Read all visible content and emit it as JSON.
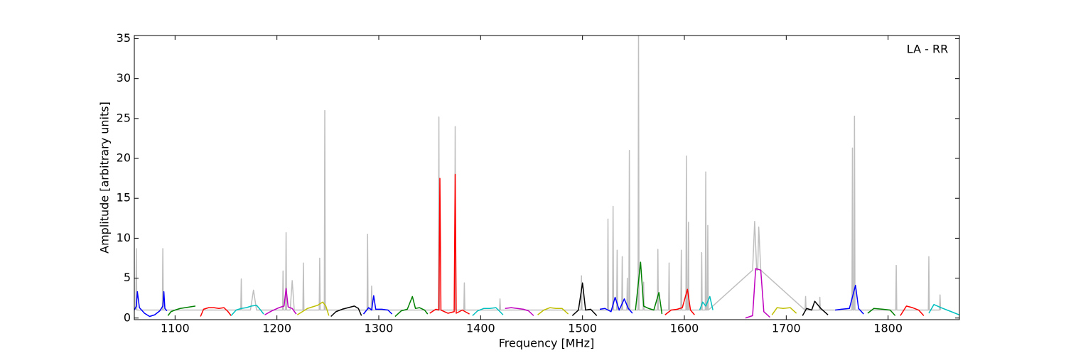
{
  "chart_data": {
    "type": "line",
    "xlabel": "Frequency [MHz]",
    "ylabel": "Amplitude [arbitrary units]",
    "annotation": "LA - RR",
    "xlim": [
      1060,
      1870
    ],
    "ylim": [
      -0.2,
      35.4
    ],
    "xticks": [
      1100,
      1200,
      1300,
      1400,
      1500,
      1600,
      1700,
      1800
    ],
    "yticks": [
      0,
      5,
      10,
      15,
      20,
      25,
      30,
      35
    ],
    "series": [
      {
        "color": "#bfbfbf",
        "x": [
          1061.5,
          1062,
          1062.5,
          1087.5,
          1088,
          1088.5,
          1164.5,
          1165,
          1165.5,
          1174,
          1177,
          1180,
          1205.5,
          1206,
          1206.5,
          1208.5,
          1209,
          1209.5,
          1213,
          1215,
          1217,
          1225.5,
          1226,
          1226.5,
          1241.5,
          1242,
          1242.5,
          1246.5,
          1247,
          1247.5,
          1288.5,
          1289,
          1289.5,
          1292.5,
          1293,
          1293.5,
          1358.5,
          1359,
          1359.5,
          1374.5,
          1375,
          1375.5,
          1383.5,
          1384,
          1384.5,
          1418.5,
          1419,
          1419.5,
          1498.5,
          1499,
          1499.5,
          1524.5,
          1525,
          1525.5,
          1529.5,
          1530,
          1530.5,
          1533.5,
          1534,
          1534.5,
          1538.5,
          1539,
          1539.5,
          1543.5,
          1544,
          1544.5,
          1545.5,
          1546,
          1546.5,
          1554.5,
          1555,
          1555.5,
          1559.5,
          1560,
          1560.5,
          1573.5,
          1574,
          1574.5,
          1584.5,
          1585,
          1585.5,
          1596.5,
          1597,
          1597.5,
          1601.5,
          1602,
          1602.5,
          1603.5,
          1604,
          1604.5,
          1616.5,
          1617,
          1617.5,
          1620.5,
          1621,
          1621.5,
          1622.5,
          1623,
          1623.5,
          1667,
          1669,
          1671,
          1672,
          1673,
          1675,
          1718.5,
          1719,
          1719.5,
          1732.5,
          1733,
          1733.5,
          1764.5,
          1765,
          1765.5,
          1766.5,
          1767,
          1767.5,
          1807.5,
          1808,
          1808.5,
          1839.5,
          1840,
          1840.5,
          1850.5,
          1851,
          1851.5
        ],
        "values": [
          1,
          8.7,
          1,
          1,
          8.7,
          1,
          1,
          4.9,
          1,
          1,
          3.5,
          1,
          1,
          5.9,
          1,
          1,
          10.7,
          1,
          1,
          4.7,
          1,
          1,
          6.9,
          1,
          1,
          7.5,
          1,
          1,
          26,
          1,
          1,
          10.5,
          1,
          1,
          4,
          1,
          1,
          25.2,
          1,
          1,
          24,
          1,
          1,
          4.4,
          1,
          1,
          2.4,
          1,
          1,
          5.3,
          1,
          1,
          12.4,
          1,
          1,
          14,
          1,
          1,
          8.5,
          1,
          1,
          7.7,
          1,
          1,
          5,
          1,
          1,
          21,
          1,
          1,
          35.4,
          1,
          1,
          4.5,
          1,
          1,
          8.6,
          1,
          1,
          6.9,
          1,
          1,
          8.5,
          1,
          1,
          20.3,
          1,
          1,
          12,
          1,
          1,
          8.2,
          1,
          1,
          18.3,
          1,
          1,
          11.6,
          1,
          6,
          12.1,
          6,
          6,
          11.4,
          6,
          1,
          2.7,
          1,
          1,
          2.6,
          1,
          1,
          21.3,
          1,
          1,
          25.3,
          1,
          1,
          6.6,
          1,
          1,
          7.7,
          1,
          1,
          2.9,
          1
        ]
      },
      {
        "color": "#0000ff",
        "x": [
          1060,
          1062,
          1063,
          1065,
          1070,
          1075,
          1080,
          1085,
          1088,
          1089,
          1090,
          1092
        ],
        "values": [
          1.0,
          1.5,
          3.3,
          1.3,
          0.6,
          0.2,
          0.4,
          0.9,
          1.5,
          3.3,
          1.2,
          0.9
        ]
      },
      {
        "color": "#008000",
        "x": [
          1093,
          1096,
          1100,
          1105,
          1110,
          1115,
          1120
        ],
        "values": [
          0.3,
          0.8,
          1.0,
          1.2,
          1.3,
          1.4,
          1.5
        ]
      },
      {
        "color": "#ff0000",
        "x": [
          1125,
          1128,
          1133,
          1138,
          1143,
          1148,
          1152,
          1155
        ],
        "values": [
          0.2,
          1.1,
          1.3,
          1.3,
          1.2,
          1.3,
          0.8,
          0.3
        ]
      },
      {
        "color": "#00bfbf",
        "x": [
          1155,
          1160,
          1165,
          1170,
          1175,
          1180,
          1184,
          1187
        ],
        "values": [
          0.3,
          1.0,
          1.2,
          1.3,
          1.5,
          1.6,
          1.0,
          0.5
        ]
      },
      {
        "color": "#bf00bf",
        "x": [
          1188,
          1195,
          1202,
          1207,
          1209,
          1211,
          1215,
          1219
        ],
        "values": [
          0.4,
          0.9,
          1.3,
          1.5,
          3.7,
          1.4,
          1.2,
          0.5
        ]
      },
      {
        "color": "#bfbf00",
        "x": [
          1220,
          1225,
          1230,
          1235,
          1240,
          1245,
          1248,
          1251
        ],
        "values": [
          0.4,
          0.8,
          1.2,
          1.4,
          1.6,
          2.0,
          1.5,
          0.3
        ]
      },
      {
        "color": "#000000",
        "x": [
          1253,
          1258,
          1264,
          1270,
          1276,
          1280,
          1283
        ],
        "values": [
          0.2,
          0.8,
          1.1,
          1.3,
          1.5,
          1.2,
          0.3
        ]
      },
      {
        "color": "#0000ff",
        "x": [
          1285,
          1290,
          1293,
          1295,
          1297,
          1303,
          1309,
          1313
        ],
        "values": [
          0.5,
          1.3,
          1.0,
          2.8,
          1.1,
          1.1,
          1.0,
          0.5
        ]
      },
      {
        "color": "#008000",
        "x": [
          1316,
          1322,
          1328,
          1333,
          1336,
          1340,
          1345,
          1348
        ],
        "values": [
          0.2,
          0.9,
          1.1,
          2.7,
          1.2,
          1.3,
          1.0,
          0.5
        ]
      },
      {
        "color": "#ff0000",
        "x": [
          1350,
          1356,
          1359,
          1360,
          1361,
          1368,
          1374,
          1375,
          1376,
          1382,
          1389
        ],
        "values": [
          0.6,
          1.1,
          1.0,
          17.5,
          1.0,
          0.6,
          0.8,
          18.0,
          0.6,
          1.0,
          0.5
        ]
      },
      {
        "color": "#00bfbf",
        "x": [
          1392,
          1397,
          1403,
          1409,
          1415,
          1419,
          1422
        ],
        "values": [
          0.3,
          0.9,
          1.2,
          1.2,
          1.3,
          0.8,
          0.4
        ]
      },
      {
        "color": "#bf00bf",
        "x": [
          1424,
          1430,
          1436,
          1442,
          1447,
          1452
        ],
        "values": [
          1.2,
          1.3,
          1.2,
          1.1,
          0.9,
          0.3
        ]
      },
      {
        "color": "#bfbf00",
        "x": [
          1456,
          1462,
          1468,
          1474,
          1480,
          1486
        ],
        "values": [
          0.4,
          1.0,
          1.3,
          1.2,
          1.2,
          0.5
        ]
      },
      {
        "color": "#000000",
        "x": [
          1490,
          1496,
          1500,
          1503,
          1508,
          1514
        ],
        "values": [
          0.3,
          1.0,
          4.4,
          1.0,
          1.1,
          0.3
        ]
      },
      {
        "color": "#0000ff",
        "x": [
          1517,
          1522,
          1528,
          1532,
          1536,
          1541,
          1545,
          1549
        ],
        "values": [
          1.1,
          1.2,
          0.8,
          2.6,
          1.0,
          2.4,
          1.2,
          0.6
        ]
      },
      {
        "color": "#008000",
        "x": [
          1552,
          1557,
          1560,
          1565,
          1570,
          1575,
          1578
        ],
        "values": [
          1.0,
          7.0,
          1.5,
          1.2,
          1.0,
          3.2,
          0.5
        ]
      },
      {
        "color": "#ff0000",
        "x": [
          1581,
          1587,
          1593,
          1598,
          1603,
          1606,
          1610
        ],
        "values": [
          0.4,
          1.0,
          1.1,
          1.3,
          3.6,
          1.0,
          0.4
        ]
      },
      {
        "color": "#00bfbf",
        "x": [
          1615,
          1618,
          1621,
          1625,
          1628
        ],
        "values": [
          1.0,
          2.0,
          1.5,
          2.7,
          1.0
        ]
      },
      {
        "color": "#bf00bf",
        "x": [
          1660,
          1667,
          1670,
          1675,
          1678,
          1684
        ],
        "values": [
          0.0,
          0.3,
          6.2,
          6.0,
          0.8,
          0.1
        ]
      },
      {
        "color": "#bfbf00",
        "x": [
          1686,
          1691,
          1697,
          1704,
          1710
        ],
        "values": [
          0.4,
          1.3,
          1.2,
          1.3,
          0.6
        ]
      },
      {
        "color": "#000000",
        "x": [
          1716,
          1720,
          1725,
          1728,
          1734,
          1741
        ],
        "values": [
          0.3,
          1.2,
          1.0,
          2.1,
          1.2,
          0.4
        ]
      },
      {
        "color": "#0000ff",
        "x": [
          1748,
          1754,
          1762,
          1768,
          1771,
          1776
        ],
        "values": [
          1.0,
          1.1,
          1.2,
          4.1,
          1.2,
          0.5
        ]
      },
      {
        "color": "#008000",
        "x": [
          1780,
          1786,
          1795,
          1802,
          1807
        ],
        "values": [
          0.6,
          1.2,
          1.1,
          1.0,
          0.3
        ]
      },
      {
        "color": "#ff0000",
        "x": [
          1812,
          1818,
          1824,
          1830,
          1835
        ],
        "values": [
          0.3,
          1.5,
          1.3,
          1.0,
          0.3
        ]
      },
      {
        "color": "#00bfbf",
        "x": [
          1840,
          1845,
          1852,
          1862,
          1870
        ],
        "values": [
          0.6,
          1.7,
          1.3,
          0.8,
          0.4
        ]
      }
    ]
  }
}
